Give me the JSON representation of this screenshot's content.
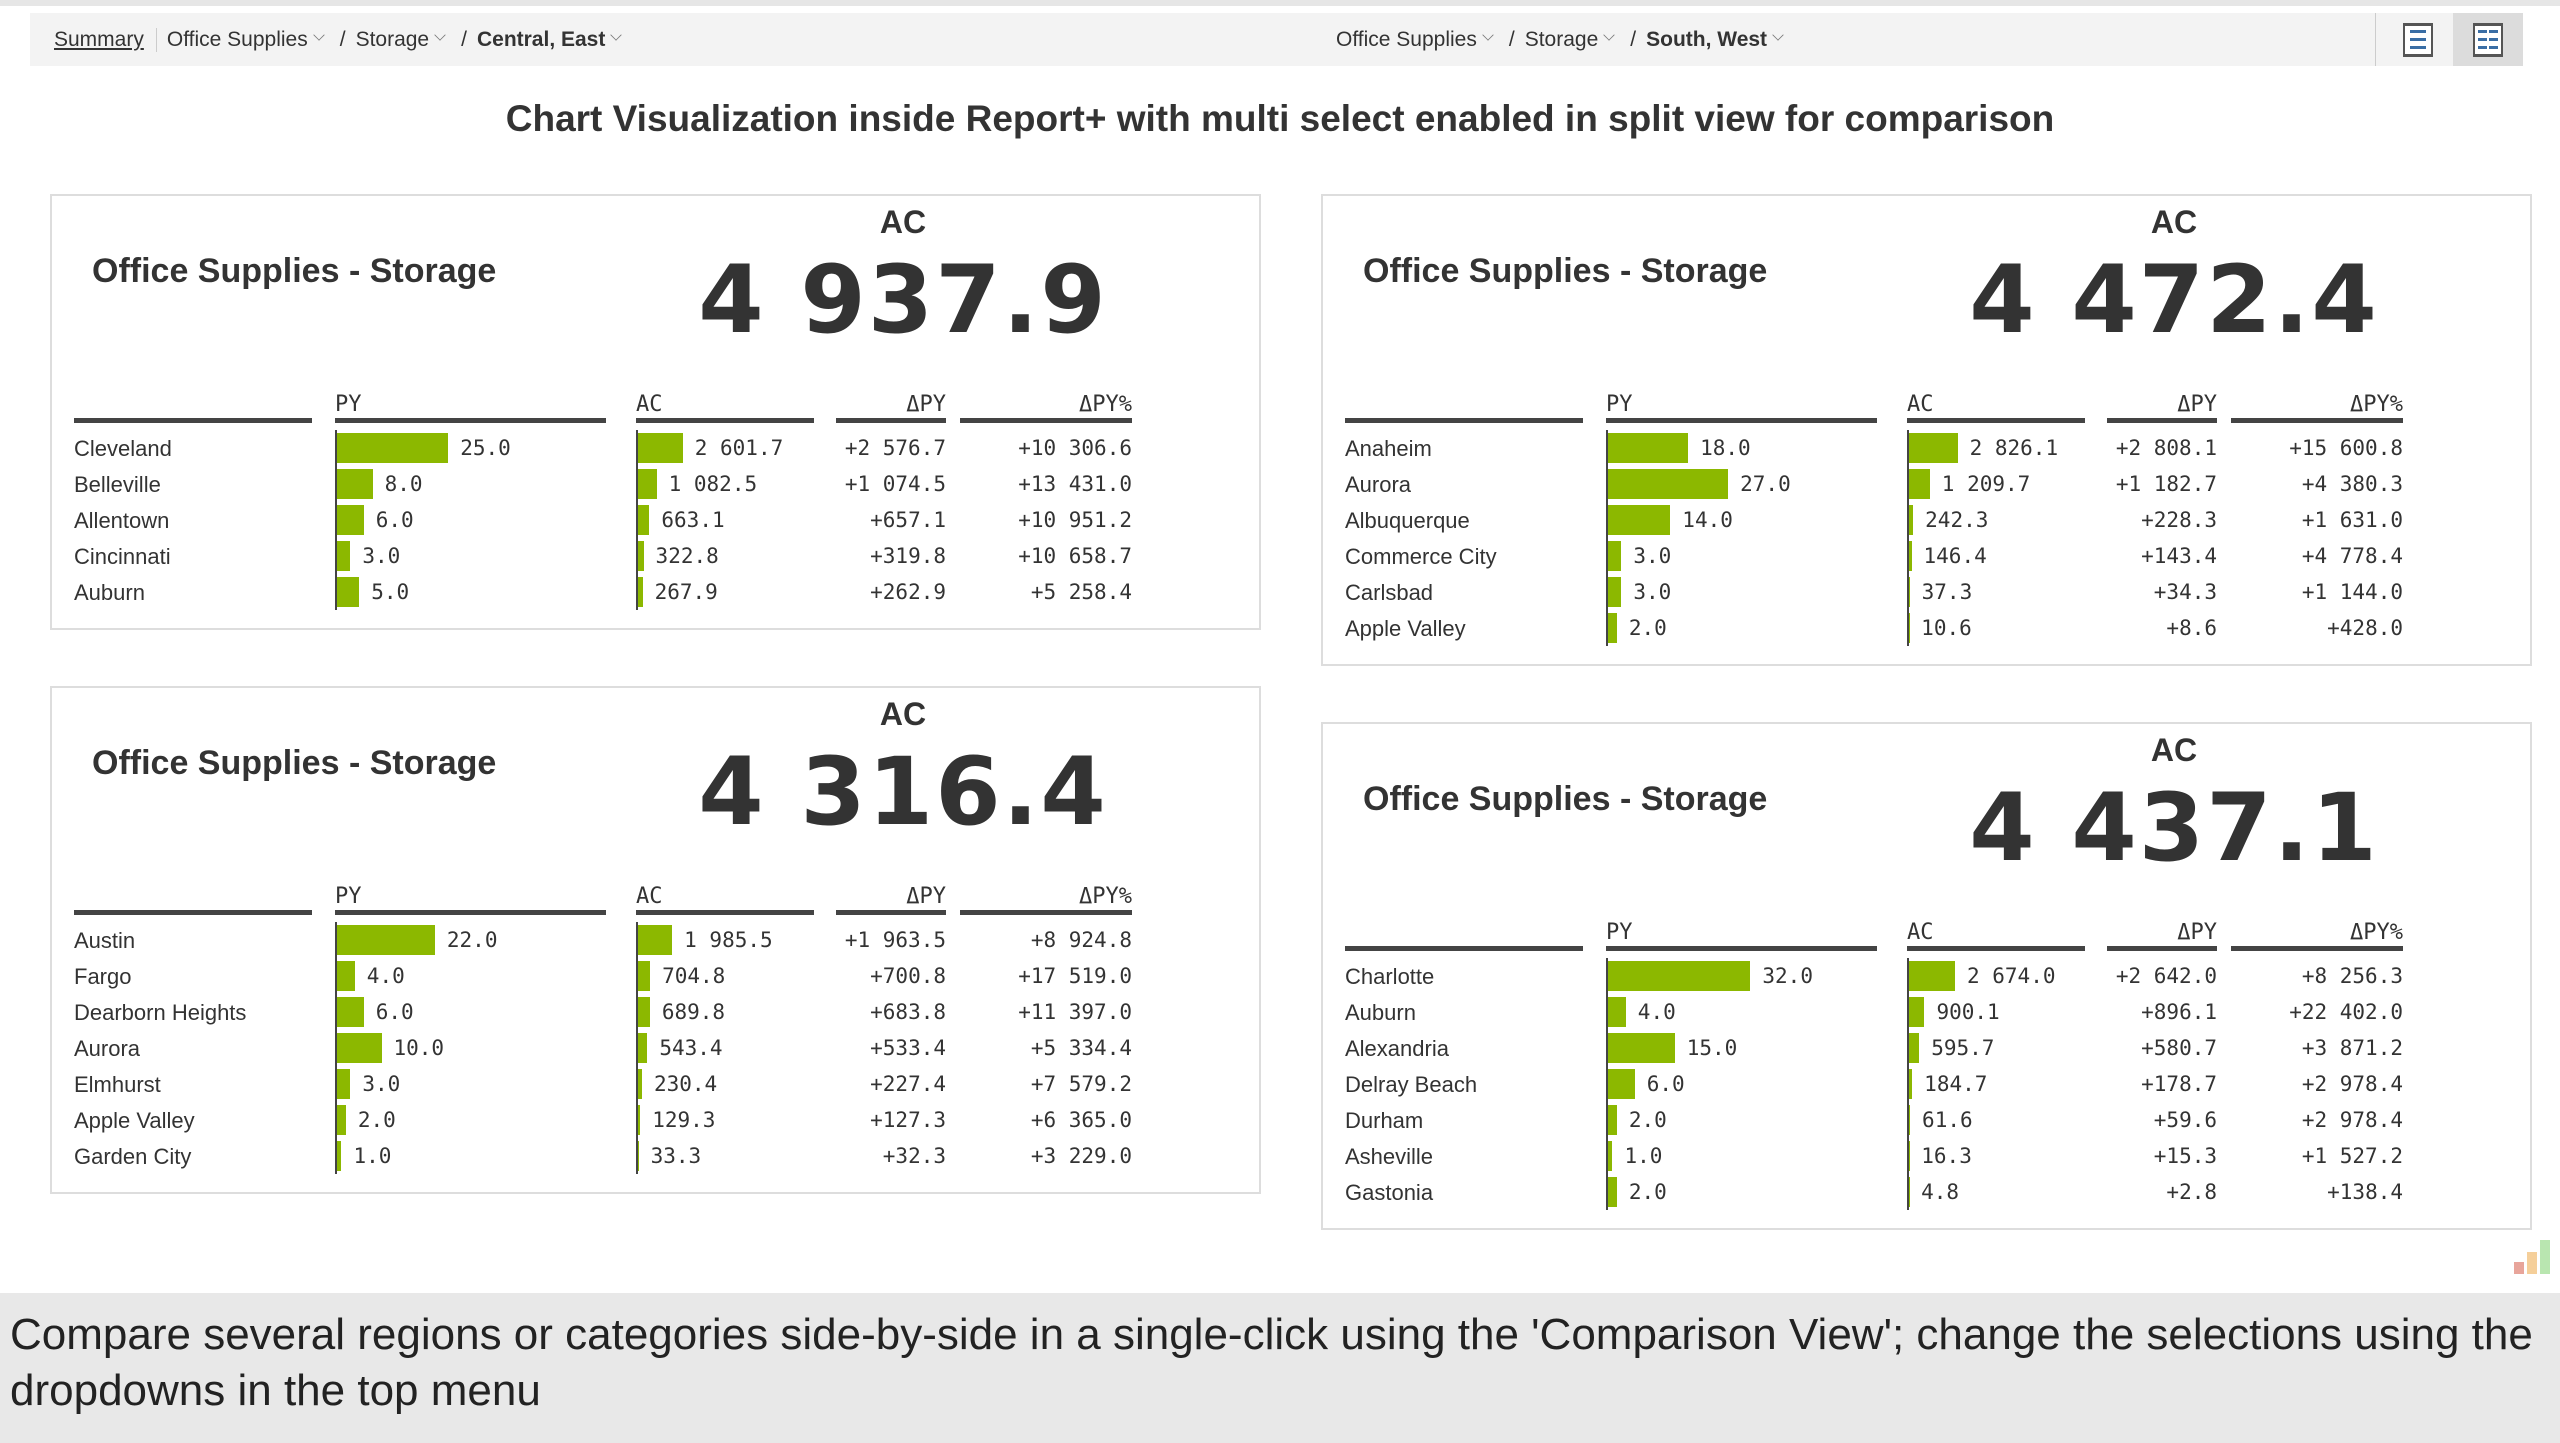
{
  "nav": {
    "summary": "Summary",
    "left": {
      "category": "Office Supplies",
      "subcategory": "Storage",
      "region": "Central, East"
    },
    "right": {
      "category": "Office Supplies",
      "subcategory": "Storage",
      "region": "South, West"
    },
    "separator": "/",
    "view_single_icon": "list-view-icon",
    "view_split_icon": "split-view-icon"
  },
  "title": "Chart Visualization inside Report+ with multi select enabled in split view for comparison",
  "columns": {
    "py": "PY",
    "ac": "AC",
    "dpy": "ΔPY",
    "dpyp": "ΔPY%"
  },
  "accent": "#8cb800",
  "panels": [
    {
      "title": "Office Supplies - Storage",
      "ac_label": "AC",
      "ac_total": "4 937.9",
      "rows": [
        {
          "name": "Cleveland",
          "py": 25.0,
          "py_label": "25.0",
          "ac": 2601.7,
          "ac_label": "2 601.7",
          "dpy": "+2 576.7",
          "dpyp": "+10 306.6"
        },
        {
          "name": "Belleville",
          "py": 8.0,
          "py_label": "8.0",
          "ac": 1082.5,
          "ac_label": "1 082.5",
          "dpy": "+1 074.5",
          "dpyp": "+13 431.0"
        },
        {
          "name": "Allentown",
          "py": 6.0,
          "py_label": "6.0",
          "ac": 663.1,
          "ac_label": "663.1",
          "dpy": "+657.1",
          "dpyp": "+10 951.2"
        },
        {
          "name": "Cincinnati",
          "py": 3.0,
          "py_label": "3.0",
          "ac": 322.8,
          "ac_label": "322.8",
          "dpy": "+319.8",
          "dpyp": "+10 658.7"
        },
        {
          "name": "Auburn",
          "py": 5.0,
          "py_label": "5.0",
          "ac": 267.9,
          "ac_label": "267.9",
          "dpy": "+262.9",
          "dpyp": "+5 258.4"
        }
      ]
    },
    {
      "title": "Office Supplies - Storage",
      "ac_label": "AC",
      "ac_total": "4 316.4",
      "rows": [
        {
          "name": "Austin",
          "py": 22.0,
          "py_label": "22.0",
          "ac": 1985.5,
          "ac_label": "1 985.5",
          "dpy": "+1 963.5",
          "dpyp": "+8 924.8"
        },
        {
          "name": "Fargo",
          "py": 4.0,
          "py_label": "4.0",
          "ac": 704.8,
          "ac_label": "704.8",
          "dpy": "+700.8",
          "dpyp": "+17 519.0"
        },
        {
          "name": "Dearborn Heights",
          "py": 6.0,
          "py_label": "6.0",
          "ac": 689.8,
          "ac_label": "689.8",
          "dpy": "+683.8",
          "dpyp": "+11 397.0"
        },
        {
          "name": "Aurora",
          "py": 10.0,
          "py_label": "10.0",
          "ac": 543.4,
          "ac_label": "543.4",
          "dpy": "+533.4",
          "dpyp": "+5 334.4"
        },
        {
          "name": "Elmhurst",
          "py": 3.0,
          "py_label": "3.0",
          "ac": 230.4,
          "ac_label": "230.4",
          "dpy": "+227.4",
          "dpyp": "+7 579.2"
        },
        {
          "name": "Apple Valley",
          "py": 2.0,
          "py_label": "2.0",
          "ac": 129.3,
          "ac_label": "129.3",
          "dpy": "+127.3",
          "dpyp": "+6 365.0"
        },
        {
          "name": "Garden City",
          "py": 1.0,
          "py_label": "1.0",
          "ac": 33.3,
          "ac_label": "33.3",
          "dpy": "+32.3",
          "dpyp": "+3 229.0"
        }
      ]
    },
    {
      "title": "Office Supplies - Storage",
      "ac_label": "AC",
      "ac_total": "4 472.4",
      "rows": [
        {
          "name": "Anaheim",
          "py": 18.0,
          "py_label": "18.0",
          "ac": 2826.1,
          "ac_label": "2 826.1",
          "dpy": "+2 808.1",
          "dpyp": "+15 600.8"
        },
        {
          "name": "Aurora",
          "py": 27.0,
          "py_label": "27.0",
          "ac": 1209.7,
          "ac_label": "1 209.7",
          "dpy": "+1 182.7",
          "dpyp": "+4 380.3"
        },
        {
          "name": "Albuquerque",
          "py": 14.0,
          "py_label": "14.0",
          "ac": 242.3,
          "ac_label": "242.3",
          "dpy": "+228.3",
          "dpyp": "+1 631.0"
        },
        {
          "name": "Commerce City",
          "py": 3.0,
          "py_label": "3.0",
          "ac": 146.4,
          "ac_label": "146.4",
          "dpy": "+143.4",
          "dpyp": "+4 778.4"
        },
        {
          "name": "Carlsbad",
          "py": 3.0,
          "py_label": "3.0",
          "ac": 37.3,
          "ac_label": "37.3",
          "dpy": "+34.3",
          "dpyp": "+1 144.0"
        },
        {
          "name": "Apple Valley",
          "py": 2.0,
          "py_label": "2.0",
          "ac": 10.6,
          "ac_label": "10.6",
          "dpy": "+8.6",
          "dpyp": "+428.0"
        }
      ]
    },
    {
      "title": "Office Supplies - Storage",
      "ac_label": "AC",
      "ac_total": "4 437.1",
      "rows": [
        {
          "name": "Charlotte",
          "py": 32.0,
          "py_label": "32.0",
          "ac": 2674.0,
          "ac_label": "2 674.0",
          "dpy": "+2 642.0",
          "dpyp": "+8 256.3"
        },
        {
          "name": "Auburn",
          "py": 4.0,
          "py_label": "4.0",
          "ac": 900.1,
          "ac_label": "900.1",
          "dpy": "+896.1",
          "dpyp": "+22 402.0"
        },
        {
          "name": "Alexandria",
          "py": 15.0,
          "py_label": "15.0",
          "ac": 595.7,
          "ac_label": "595.7",
          "dpy": "+580.7",
          "dpyp": "+3 871.2"
        },
        {
          "name": "Delray Beach",
          "py": 6.0,
          "py_label": "6.0",
          "ac": 184.7,
          "ac_label": "184.7",
          "dpy": "+178.7",
          "dpyp": "+2 978.4"
        },
        {
          "name": "Durham",
          "py": 2.0,
          "py_label": "2.0",
          "ac": 61.6,
          "ac_label": "61.6",
          "dpy": "+59.6",
          "dpyp": "+2 978.4"
        },
        {
          "name": "Asheville",
          "py": 1.0,
          "py_label": "1.0",
          "ac": 16.3,
          "ac_label": "16.3",
          "dpy": "+15.3",
          "dpyp": "+1 527.2"
        },
        {
          "name": "Gastonia",
          "py": 2.0,
          "py_label": "2.0",
          "ac": 4.8,
          "ac_label": "4.8",
          "dpy": "+2.8",
          "dpyp": "+138.4"
        }
      ]
    }
  ],
  "caption": "Compare several regions or categories side-by-side in a single-click using the 'Comparison View'; change the selections using the dropdowns in the top menu"
}
